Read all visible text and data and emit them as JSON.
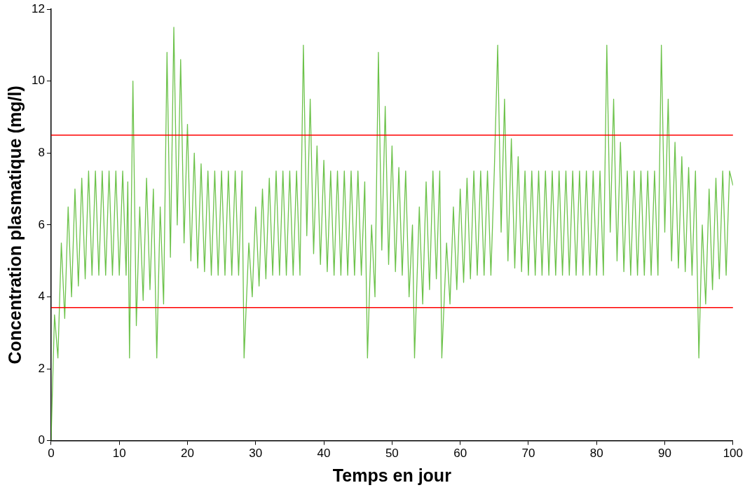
{
  "chart_data": {
    "type": "line",
    "xlabel": "Temps en jour",
    "ylabel": "Concentration plasmatique (mg/l)",
    "xlim": [
      0,
      100
    ],
    "xticks": [
      0,
      10,
      20,
      30,
      40,
      50,
      60,
      70,
      80,
      90,
      100
    ],
    "ylim": [
      0,
      12
    ],
    "yticks": [
      0,
      2,
      4,
      6,
      8,
      10,
      12
    ],
    "grid": false,
    "legend": false,
    "marker": "none",
    "line_style": "solid",
    "ref_lines": [
      {
        "axis": "y",
        "value": 8.5,
        "color": "#ff0000"
      },
      {
        "axis": "y",
        "value": 3.7,
        "color": "#ff0000"
      }
    ],
    "series": [
      {
        "color": "#6cc24a",
        "x": [
          0,
          0.5,
          1,
          1.5,
          2,
          2.5,
          3,
          3.5,
          4,
          4.5,
          5,
          5.5,
          6,
          6.5,
          7,
          7.5,
          8,
          8.5,
          9,
          9.5,
          10,
          10.5,
          11,
          11.25,
          11.5,
          12,
          12.5,
          13,
          13.5,
          14,
          14.5,
          15,
          15.5,
          16,
          16.5,
          17,
          17.5,
          18,
          18.5,
          19,
          19.5,
          20,
          20.5,
          21,
          21.5,
          22,
          22.5,
          23,
          23.5,
          24,
          24.5,
          25,
          25.5,
          26,
          26.5,
          27,
          27.5,
          28,
          28.3,
          29,
          29.5,
          30,
          30.5,
          31,
          31.5,
          32,
          32.5,
          33,
          33.5,
          34,
          34.5,
          35,
          35.5,
          36,
          36.5,
          37,
          37.5,
          38,
          38.5,
          39,
          39.5,
          40,
          40.5,
          41,
          41.5,
          42,
          42.5,
          43,
          43.5,
          44,
          44.5,
          45,
          45.5,
          46,
          46.4,
          47,
          47.5,
          48,
          48.5,
          49,
          49.5,
          50,
          50.5,
          51,
          51.5,
          52,
          52.5,
          53,
          53.3,
          54,
          54.5,
          55,
          55.5,
          56,
          56.5,
          57,
          57.3,
          58,
          58.5,
          59,
          59.5,
          60,
          60.5,
          61,
          61.5,
          62,
          62.5,
          63,
          63.5,
          64,
          64.5,
          65,
          65.5,
          66,
          66.5,
          67,
          67.5,
          68,
          68.5,
          69,
          69.5,
          70,
          70.5,
          71,
          71.5,
          72,
          72.5,
          73,
          73.5,
          74,
          74.5,
          75,
          75.5,
          76,
          76.5,
          77,
          77.5,
          78,
          78.5,
          79,
          79.5,
          80,
          80.5,
          81,
          81.5,
          82,
          82.5,
          83,
          83.5,
          84,
          84.5,
          85,
          85.5,
          86,
          86.5,
          87,
          87.5,
          88,
          88.5,
          89,
          89.5,
          90,
          90.5,
          91,
          91.5,
          92,
          92.5,
          93,
          93.5,
          94,
          94.5,
          95,
          95.5,
          96,
          96.5,
          97,
          97.5,
          98,
          98.5,
          99,
          99.5,
          100
        ],
        "values": [
          0,
          3.5,
          2.3,
          5.5,
          3.4,
          6.5,
          4.0,
          7.0,
          4.3,
          7.3,
          4.5,
          7.5,
          4.6,
          7.5,
          4.6,
          7.5,
          4.6,
          7.5,
          4.6,
          7.5,
          4.6,
          7.5,
          4.6,
          7.2,
          2.3,
          10.0,
          3.2,
          6.5,
          3.9,
          7.3,
          4.2,
          7.0,
          2.3,
          6.5,
          3.8,
          10.8,
          5.1,
          11.5,
          6.0,
          10.6,
          5.5,
          8.8,
          5.0,
          8.0,
          4.8,
          7.7,
          4.7,
          7.5,
          4.6,
          7.5,
          4.6,
          7.5,
          4.6,
          7.5,
          4.6,
          7.5,
          4.6,
          7.5,
          2.3,
          5.5,
          4.0,
          6.5,
          4.3,
          7.0,
          4.5,
          7.3,
          4.6,
          7.5,
          4.6,
          7.5,
          4.6,
          7.5,
          4.6,
          7.5,
          4.6,
          11.0,
          5.7,
          9.5,
          5.2,
          8.2,
          4.9,
          7.8,
          4.7,
          7.5,
          4.6,
          7.5,
          4.6,
          7.5,
          4.6,
          7.5,
          4.6,
          7.5,
          4.6,
          7.2,
          2.3,
          6.0,
          4.0,
          10.8,
          5.3,
          9.3,
          4.9,
          8.2,
          4.7,
          7.6,
          4.6,
          7.5,
          4.0,
          6.0,
          2.3,
          6.5,
          3.8,
          7.2,
          4.2,
          7.5,
          4.5,
          7.5,
          2.3,
          5.5,
          3.8,
          6.5,
          4.2,
          7.0,
          4.4,
          7.3,
          4.5,
          7.5,
          4.6,
          7.5,
          4.6,
          7.5,
          4.6,
          7.5,
          11.0,
          5.8,
          9.5,
          5.0,
          8.4,
          4.8,
          7.9,
          4.7,
          7.5,
          4.6,
          7.5,
          4.6,
          7.5,
          4.6,
          7.5,
          4.6,
          7.5,
          4.6,
          7.5,
          4.6,
          7.5,
          4.6,
          7.5,
          4.6,
          7.5,
          4.6,
          7.5,
          4.6,
          7.5,
          4.6,
          7.5,
          4.6,
          11.0,
          5.8,
          9.5,
          5.0,
          8.3,
          4.7,
          7.5,
          4.6,
          7.5,
          4.6,
          7.5,
          4.6,
          7.5,
          4.6,
          7.5,
          4.6,
          11.0,
          5.8,
          9.5,
          5.0,
          8.3,
          4.8,
          7.9,
          4.7,
          7.6,
          4.6,
          7.5,
          2.3,
          6.0,
          3.8,
          7.0,
          4.2,
          7.3,
          4.5,
          7.5,
          4.6,
          7.5,
          7.1
        ]
      }
    ]
  }
}
